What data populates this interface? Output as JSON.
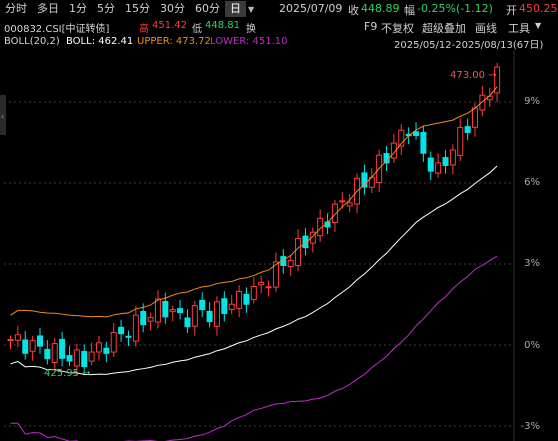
{
  "toolbar": {
    "tabs": [
      "分时",
      "多日",
      "1分",
      "5分",
      "15分",
      "30分",
      "60分",
      "日"
    ],
    "active_tab": "日",
    "date": "2025/07/09",
    "close_label": "收",
    "close_value": "448.89",
    "change_label": "幅",
    "change_value": "-0.25%(-1.12)",
    "open_label": "开",
    "open_value": "450.25",
    "high_label": "高",
    "high_value": "451.42",
    "low_label": "低",
    "low_value": "448.81",
    "switch_label": "换",
    "tools": [
      "F9",
      "不复权",
      "超级叠加",
      "画线",
      "工具"
    ],
    "tools_menu_icon": "chevron-down-icon"
  },
  "header": {
    "security": "000832.CSI[中证转债]",
    "boll_label": "BOLL(20,2)",
    "boll_value": "BOLL: 462.41",
    "upper_value": "UPPER: 473.72",
    "lower_value": "LOWER: 451.10",
    "range": "2025/05/12-2025/08/13(67日)",
    "collapse_icon": "chevron-left-icon"
  },
  "chart_data": {
    "type": "candlestick",
    "y_axis_labels": [
      "9%",
      "6%",
      "3%",
      "0%",
      "-3%"
    ],
    "annotations": {
      "high": "473.00",
      "low": "425.95"
    },
    "colors": {
      "up": "#ff3b3b",
      "down": "#00e5e5",
      "boll": "#ffffff",
      "upper": "#f08c1e",
      "lower": "#c02ad0",
      "grid": "#3c3c3c"
    }
  }
}
